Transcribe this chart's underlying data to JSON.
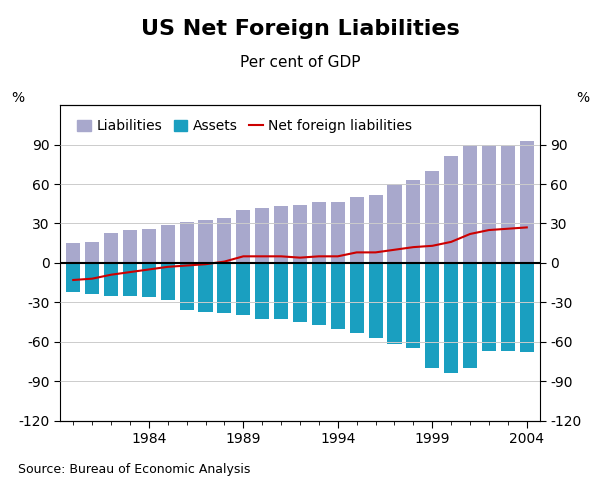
{
  "title": "US Net Foreign Liabilities",
  "subtitle": "Per cent of GDP",
  "source": "Source: Bureau of Economic Analysis",
  "years": [
    1980,
    1981,
    1982,
    1983,
    1984,
    1985,
    1986,
    1987,
    1988,
    1989,
    1990,
    1991,
    1992,
    1993,
    1994,
    1995,
    1996,
    1997,
    1998,
    1999,
    2000,
    2001,
    2002,
    2003,
    2004
  ],
  "liabilities": [
    15,
    16,
    23,
    25,
    26,
    29,
    31,
    33,
    34,
    40,
    42,
    43,
    44,
    46,
    46,
    50,
    52,
    60,
    63,
    70,
    81,
    90,
    90,
    89,
    93
  ],
  "assets": [
    -22,
    -24,
    -25,
    -25,
    -26,
    -28,
    -36,
    -37,
    -38,
    -40,
    -43,
    -43,
    -45,
    -47,
    -50,
    -53,
    -57,
    -62,
    -65,
    -80,
    -84,
    -80,
    -67,
    -67,
    -68
  ],
  "net_foreign_liabilities": [
    -13,
    -12,
    -9,
    -7,
    -5,
    -3,
    -2,
    -1,
    1,
    5,
    5,
    5,
    4,
    5,
    5,
    8,
    8,
    10,
    12,
    13,
    16,
    22,
    25,
    26,
    27
  ],
  "liabilities_color": "#a8a8cc",
  "assets_color": "#1a9fc0",
  "net_line_color": "#cc0000",
  "ylim": [
    -120,
    120
  ],
  "yticks": [
    -120,
    -90,
    -60,
    -30,
    0,
    30,
    60,
    90
  ],
  "xlim_min": 1979.3,
  "xlim_max": 2004.7,
  "background_color": "#ffffff",
  "grid_color": "#cccccc",
  "title_fontsize": 16,
  "subtitle_fontsize": 11,
  "tick_fontsize": 10,
  "legend_fontsize": 10,
  "source_fontsize": 9,
  "bar_width": 0.75
}
